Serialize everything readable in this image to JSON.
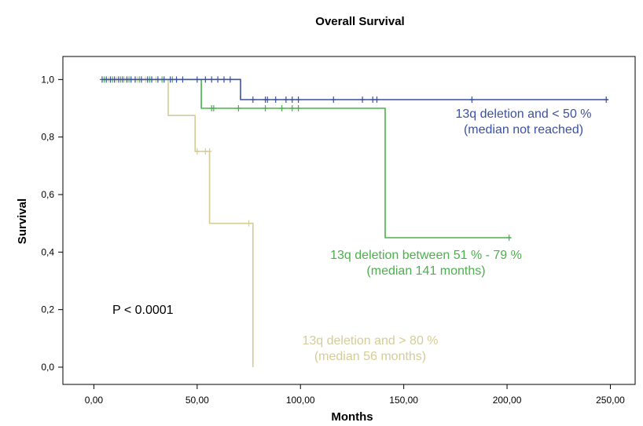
{
  "chart_data": {
    "type": "line",
    "title": "Overall Survival",
    "xlabel": "Months",
    "ylabel": "Survival",
    "xlim": [
      -15,
      262
    ],
    "ylim": [
      -0.06,
      1.08
    ],
    "x_ticks": [
      0,
      50,
      100,
      150,
      200,
      250
    ],
    "x_tick_labels": [
      "0,00",
      "50,00",
      "100,00",
      "150,00",
      "200,00",
      "250,00"
    ],
    "y_ticks": [
      0,
      0.2,
      0.4,
      0.6,
      0.8,
      1.0
    ],
    "y_tick_labels": [
      "0,0",
      "0,2",
      "0,4",
      "0,6",
      "0,8",
      "1,0"
    ],
    "grid": false,
    "annotation": "P < 0.0001",
    "series": [
      {
        "label_lines": [
          "13q deletion and < 50 %",
          "(median not reached)"
        ],
        "color": "#3b51a3",
        "steps": [
          [
            4,
            1.0
          ],
          [
            71,
            1.0
          ],
          [
            71,
            0.93
          ],
          [
            249,
            0.93
          ]
        ],
        "censored": [
          [
            4,
            1.0
          ],
          [
            6,
            1.0
          ],
          [
            8,
            1.0
          ],
          [
            10,
            1.0
          ],
          [
            12,
            1.0
          ],
          [
            14,
            1.0
          ],
          [
            16,
            1.0
          ],
          [
            18,
            1.0
          ],
          [
            20,
            1.0
          ],
          [
            23,
            1.0
          ],
          [
            26,
            1.0
          ],
          [
            28,
            1.0
          ],
          [
            31,
            1.0
          ],
          [
            34,
            1.0
          ],
          [
            37,
            1.0
          ],
          [
            40,
            1.0
          ],
          [
            43,
            1.0
          ],
          [
            50,
            1.0
          ],
          [
            54,
            1.0
          ],
          [
            57,
            1.0
          ],
          [
            60,
            1.0
          ],
          [
            63,
            1.0
          ],
          [
            66,
            1.0
          ],
          [
            77,
            0.93
          ],
          [
            83,
            0.93
          ],
          [
            84,
            0.93
          ],
          [
            88,
            0.93
          ],
          [
            93,
            0.93
          ],
          [
            96,
            0.93
          ],
          [
            99,
            0.93
          ],
          [
            116,
            0.93
          ],
          [
            130,
            0.93
          ],
          [
            135,
            0.93
          ],
          [
            137,
            0.93
          ],
          [
            183,
            0.93
          ],
          [
            248,
            0.93
          ]
        ]
      },
      {
        "label_lines": [
          "13q deletion between 51 % - 79 %",
          "(median 141 months)"
        ],
        "color": "#4bb04b",
        "steps": [
          [
            4,
            1.0
          ],
          [
            52,
            1.0
          ],
          [
            52,
            0.9
          ],
          [
            141,
            0.9
          ],
          [
            141,
            0.45
          ],
          [
            202,
            0.45
          ]
        ],
        "censored": [
          [
            5,
            1.0
          ],
          [
            9,
            1.0
          ],
          [
            13,
            1.0
          ],
          [
            17,
            1.0
          ],
          [
            22,
            1.0
          ],
          [
            27,
            1.0
          ],
          [
            33,
            1.0
          ],
          [
            38,
            1.0
          ],
          [
            57,
            0.9
          ],
          [
            58,
            0.9
          ],
          [
            70,
            0.9
          ],
          [
            83,
            0.9
          ],
          [
            91,
            0.9
          ],
          [
            96,
            0.9
          ],
          [
            99,
            0.9
          ],
          [
            201,
            0.45
          ]
        ]
      },
      {
        "label_lines": [
          "13q deletion and > 80 %",
          "(median 56 months)"
        ],
        "color": "#d4cc98",
        "steps": [
          [
            4,
            1.0
          ],
          [
            36,
            1.0
          ],
          [
            36,
            0.875
          ],
          [
            49,
            0.875
          ],
          [
            49,
            0.75
          ],
          [
            56,
            0.75
          ],
          [
            56,
            0.5
          ],
          [
            77,
            0.5
          ],
          [
            77,
            0.0
          ]
        ],
        "censored": [
          [
            7,
            1.0
          ],
          [
            11,
            1.0
          ],
          [
            15,
            1.0
          ],
          [
            21,
            1.0
          ],
          [
            25,
            1.0
          ],
          [
            30,
            1.0
          ],
          [
            50,
            0.75
          ],
          [
            54,
            0.75
          ],
          [
            56,
            0.75
          ],
          [
            75,
            0.5
          ]
        ]
      }
    ]
  }
}
